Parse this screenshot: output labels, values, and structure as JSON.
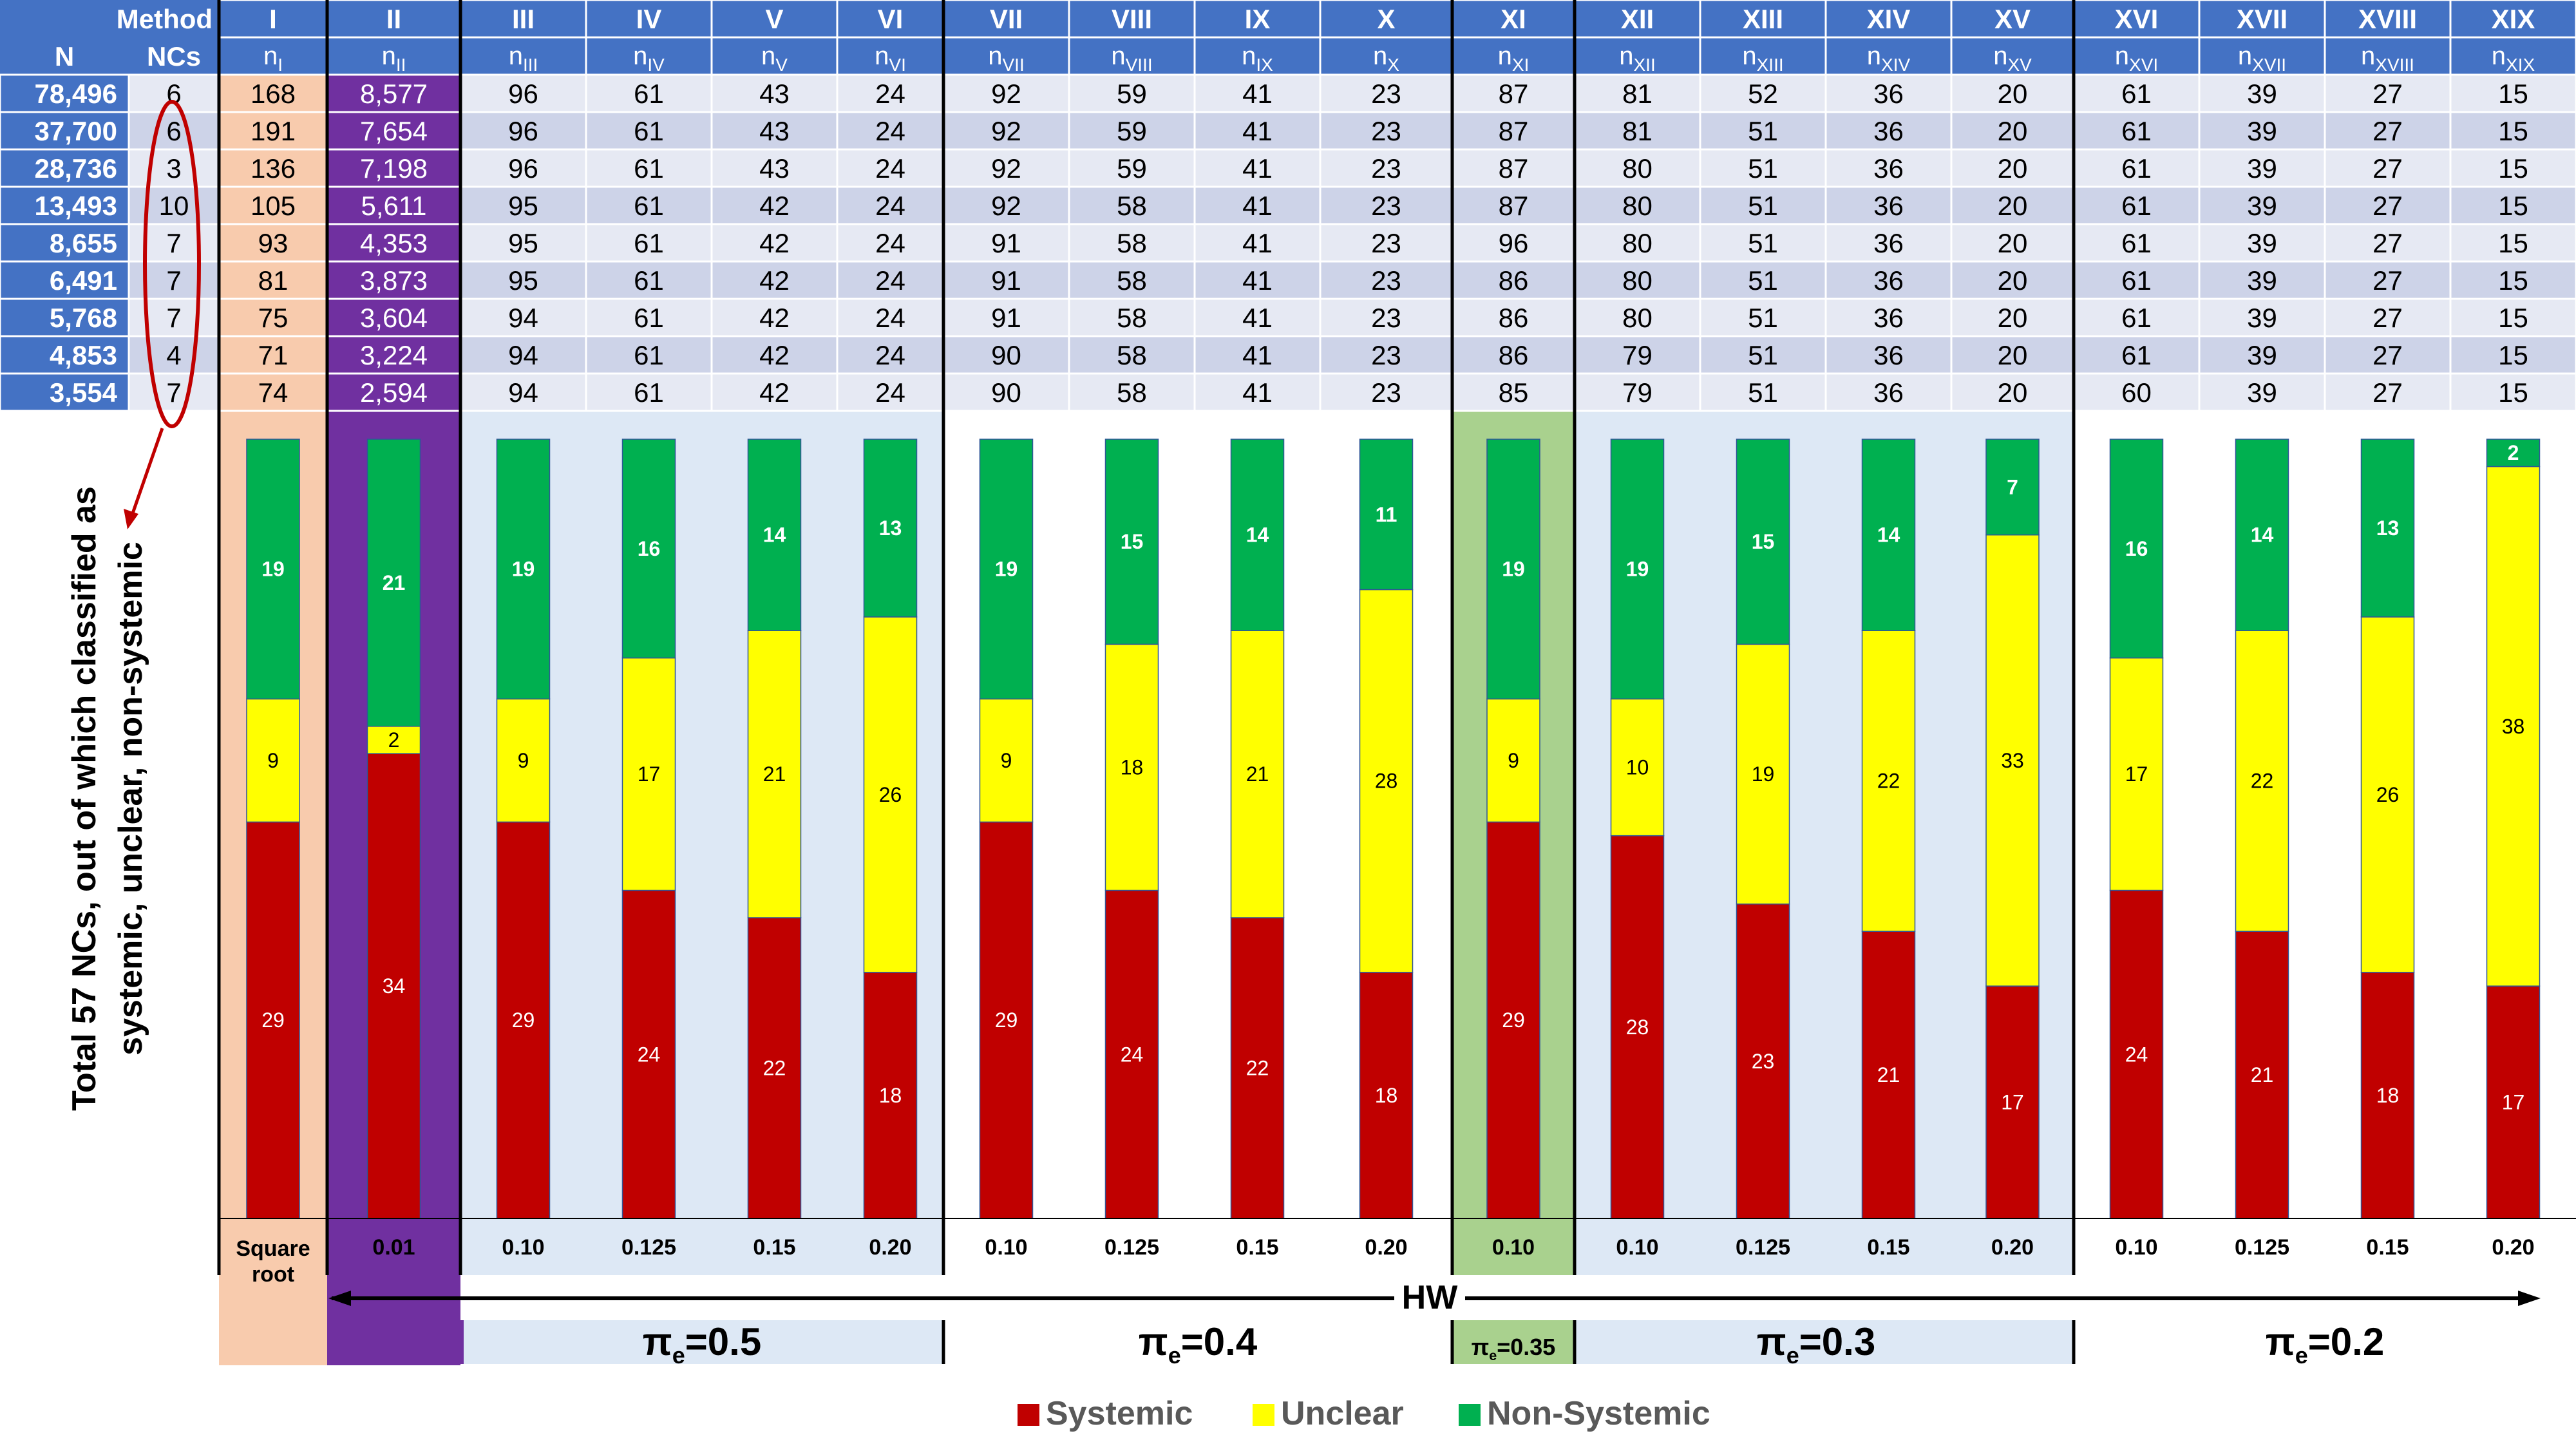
{
  "header": {
    "method_label": "Method",
    "n_label": "N",
    "ncs_label": "NCs",
    "method_codes": [
      "I",
      "II",
      "III",
      "IV",
      "V",
      "VI",
      "VII",
      "VIII",
      "IX",
      "X",
      "XI",
      "XII",
      "XIII",
      "XIV",
      "XV",
      "XVI",
      "XVII",
      "XVIII",
      "XIX"
    ],
    "n_symbol": "n",
    "n_subscripts": [
      "I",
      "II",
      "III",
      "IV",
      "V",
      "VI",
      "VII",
      "VIII",
      "IX",
      "X",
      "XI",
      "XII",
      "XIII",
      "XIV",
      "XV",
      "XVI",
      "XVII",
      "XVIII",
      "XIX"
    ]
  },
  "table": {
    "rows": [
      {
        "N": "78,496",
        "NCs": "6",
        "values": [
          "168",
          "8,577",
          "96",
          "61",
          "43",
          "24",
          "92",
          "59",
          "41",
          "23",
          "87",
          "81",
          "52",
          "36",
          "20",
          "61",
          "39",
          "27",
          "15"
        ]
      },
      {
        "N": "37,700",
        "NCs": "6",
        "values": [
          "191",
          "7,654",
          "96",
          "61",
          "43",
          "24",
          "92",
          "59",
          "41",
          "23",
          "87",
          "81",
          "51",
          "36",
          "20",
          "61",
          "39",
          "27",
          "15"
        ]
      },
      {
        "N": "28,736",
        "NCs": "3",
        "values": [
          "136",
          "7,198",
          "96",
          "61",
          "43",
          "24",
          "92",
          "59",
          "41",
          "23",
          "87",
          "80",
          "51",
          "36",
          "20",
          "61",
          "39",
          "27",
          "15"
        ]
      },
      {
        "N": "13,493",
        "NCs": "10",
        "values": [
          "105",
          "5,611",
          "95",
          "61",
          "42",
          "24",
          "92",
          "58",
          "41",
          "23",
          "87",
          "80",
          "51",
          "36",
          "20",
          "61",
          "39",
          "27",
          "15"
        ]
      },
      {
        "N": "8,655",
        "NCs": "7",
        "values": [
          "93",
          "4,353",
          "95",
          "61",
          "42",
          "24",
          "91",
          "58",
          "41",
          "23",
          "96",
          "80",
          "51",
          "36",
          "20",
          "61",
          "39",
          "27",
          "15"
        ]
      },
      {
        "N": "6,491",
        "NCs": "7",
        "values": [
          "81",
          "3,873",
          "95",
          "61",
          "42",
          "24",
          "91",
          "58",
          "41",
          "23",
          "86",
          "80",
          "51",
          "36",
          "20",
          "61",
          "39",
          "27",
          "15"
        ]
      },
      {
        "N": "5,768",
        "NCs": "7",
        "values": [
          "75",
          "3,604",
          "94",
          "61",
          "42",
          "24",
          "91",
          "58",
          "41",
          "23",
          "86",
          "80",
          "51",
          "36",
          "20",
          "61",
          "39",
          "27",
          "15"
        ]
      },
      {
        "N": "4,853",
        "NCs": "4",
        "values": [
          "71",
          "3,224",
          "94",
          "61",
          "42",
          "24",
          "90",
          "58",
          "41",
          "23",
          "86",
          "79",
          "51",
          "36",
          "20",
          "61",
          "39",
          "27",
          "15"
        ]
      },
      {
        "N": "3,554",
        "NCs": "7",
        "values": [
          "74",
          "2,594",
          "94",
          "61",
          "42",
          "24",
          "90",
          "58",
          "41",
          "23",
          "85",
          "79",
          "51",
          "36",
          "20",
          "60",
          "39",
          "27",
          "15"
        ]
      }
    ]
  },
  "side_annotation": {
    "line1": "Total 57 NCs, out of which classified as",
    "line2": "systemic, unclear, non-systemic"
  },
  "bottom": {
    "thresholds": [
      "Square root",
      "0.01",
      "0.10",
      "0.125",
      "0.15",
      "0.20",
      "0.10",
      "0.125",
      "0.15",
      "0.20",
      "0.10",
      "0.10",
      "0.125",
      "0.15",
      "0.20",
      "0.10",
      "0.125",
      "0.15",
      "0.20"
    ],
    "hw_label": "HW",
    "pi_labels": [
      "πe=0.5",
      "πe=0.4",
      "πe=0.35",
      "πe=0.3",
      "πe=0.2"
    ]
  },
  "colors": {
    "header_blue": "#4472c4",
    "row_light": "#e6e9f3",
    "row_dark": "#cdd3e8",
    "col_I": "#f8cbad",
    "col_II": "#7030a0",
    "band_blue": "#dde8f5",
    "band_green": "#a9d18e",
    "systemic": "#c00000",
    "unclear": "#ffff00",
    "non_systemic": "#00b050",
    "oval": "#c00000"
  },
  "chart_data": {
    "type": "bar",
    "stacked": true,
    "categories": [
      "I",
      "II",
      "III",
      "IV",
      "V",
      "VI",
      "VII",
      "VIII",
      "IX",
      "X",
      "XI",
      "XII",
      "XIII",
      "XIV",
      "XV",
      "XVI",
      "XVII",
      "XVIII",
      "XIX"
    ],
    "series": [
      {
        "name": "Systemic",
        "values": [
          29,
          34,
          29,
          24,
          22,
          18,
          29,
          24,
          22,
          18,
          29,
          28,
          23,
          21,
          17,
          24,
          21,
          18,
          17
        ]
      },
      {
        "name": "Unclear",
        "values": [
          9,
          2,
          9,
          17,
          21,
          26,
          9,
          18,
          21,
          28,
          9,
          10,
          19,
          22,
          33,
          17,
          22,
          26,
          38
        ]
      },
      {
        "name": "Non-Systemic",
        "values": [
          19,
          21,
          19,
          16,
          14,
          13,
          19,
          15,
          14,
          11,
          19,
          19,
          15,
          14,
          7,
          16,
          14,
          13,
          2
        ]
      }
    ],
    "ylim": [
      0,
      57
    ],
    "legend_position": "bottom-center"
  }
}
